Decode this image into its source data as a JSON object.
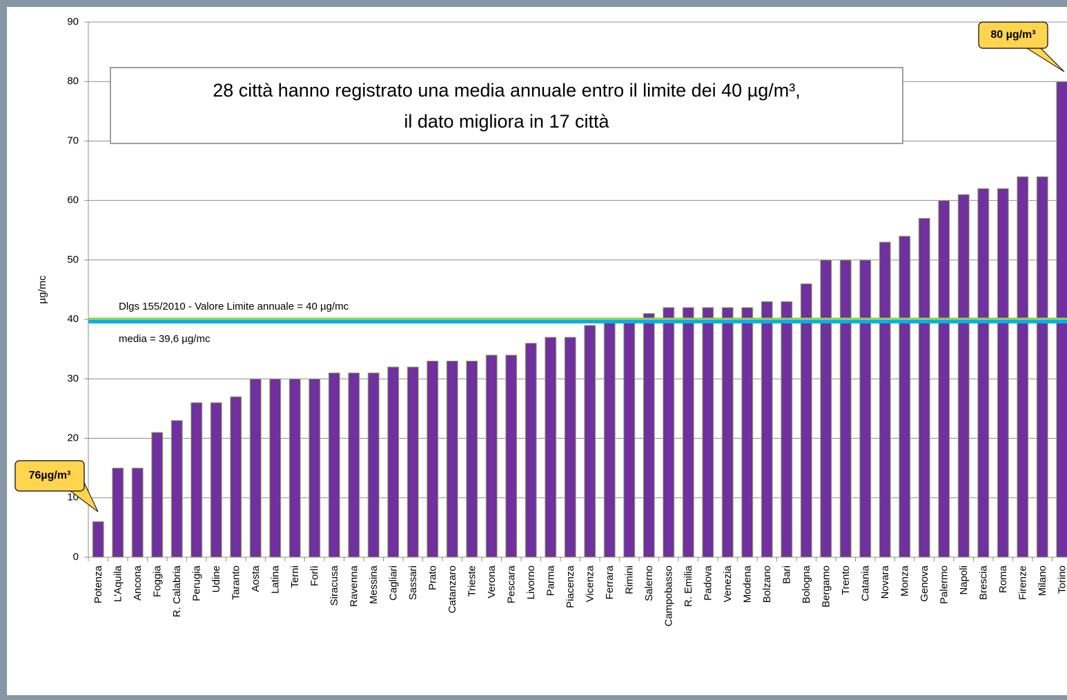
{
  "chart_data": {
    "type": "bar",
    "y_label": "µg/mc",
    "categories": [
      "Potenza",
      "L'Aquila",
      "Ancona",
      "Foggia",
      "R. Calabria",
      "Perugia",
      "Udine",
      "Taranto",
      "Aosta",
      "Latina",
      "Terni",
      "Forlì",
      "Siracusa",
      "Ravenna",
      "Messina",
      "Cagliari",
      "Sassari",
      "Prato",
      "Catanzaro",
      "Trieste",
      "Verona",
      "Pescara",
      "Livorno",
      "Parma",
      "Piacenza",
      "Vicenza",
      "Ferrara",
      "Rimini",
      "Salerno",
      "Campobasso",
      "R. Emilia",
      "Padova",
      "Venezia",
      "Modena",
      "Bolzano",
      "Bari",
      "Bologna",
      "Bergamo",
      "Trento",
      "Catania",
      "Novara",
      "Monza",
      "Genova",
      "Palermo",
      "Napoli",
      "Brescia",
      "Roma",
      "Firenze",
      "Milano",
      "Torino"
    ],
    "values": [
      6,
      15,
      15,
      21,
      23,
      26,
      26,
      27,
      30,
      30,
      30,
      30,
      31,
      31,
      31,
      32,
      32,
      33,
      33,
      33,
      34,
      34,
      36,
      37,
      37,
      39,
      40,
      40,
      41,
      42,
      42,
      42,
      42,
      42,
      43,
      43,
      46,
      50,
      50,
      50,
      53,
      54,
      57,
      60,
      61,
      62,
      62,
      64,
      64,
      80
    ],
    "color": "#7030a0",
    "edge_color": "#9bbb59",
    "ylim": [
      0,
      90
    ],
    "yticks": [
      0,
      10,
      20,
      30,
      40,
      50,
      60,
      70,
      80,
      90
    ],
    "grid": true,
    "reference_lines": [
      {
        "value": 40,
        "label": "Dlgs 155/2010 - Valore Limite annuale = 40 µg/mc",
        "color": "#92d050"
      },
      {
        "value": 39.6,
        "label": "media = 39,6 µg/mc",
        "color": "#00b0f0"
      }
    ],
    "annotation": [
      "28 città hanno registrato una media annuale entro il limite dei 40 µg/m³,",
      "il dato migliora in 17 città"
    ],
    "callouts": [
      "80 µg/m³",
      "76µg/m³"
    ]
  }
}
